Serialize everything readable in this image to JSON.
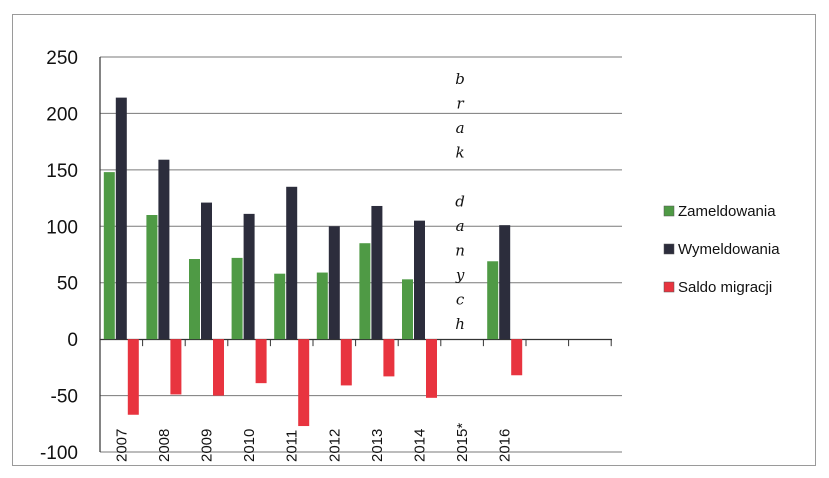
{
  "chart_data": {
    "type": "bar",
    "categories": [
      "2007",
      "2008",
      "2009",
      "2010",
      "2011",
      "2012",
      "2013",
      "2014",
      "2015*",
      "2016"
    ],
    "series": [
      {
        "name": "Zameldowania",
        "color": "#4f9a45",
        "values": [
          148,
          110,
          71,
          72,
          58,
          59,
          85,
          53,
          null,
          69
        ]
      },
      {
        "name": "Wymeldowania",
        "color": "#2c2d3c",
        "values": [
          214,
          159,
          121,
          111,
          135,
          100,
          118,
          105,
          null,
          101
        ]
      },
      {
        "name": "Saldo migracji",
        "color": "#e8343f",
        "values": [
          -67,
          -49,
          -50,
          -39,
          -77,
          -41,
          -33,
          -52,
          null,
          -32
        ]
      }
    ],
    "ylim": [
      -100,
      250
    ],
    "yticks": [
      250,
      200,
      150,
      100,
      50,
      0,
      -50,
      -100
    ],
    "grid": true,
    "legend": "right",
    "annotation": {
      "category": "2015*",
      "letters": [
        "b",
        "r",
        "a",
        "k",
        "",
        "d",
        "a",
        "n",
        "y",
        "c",
        "h"
      ]
    },
    "title": "",
    "xlabel": "",
    "ylabel": ""
  }
}
